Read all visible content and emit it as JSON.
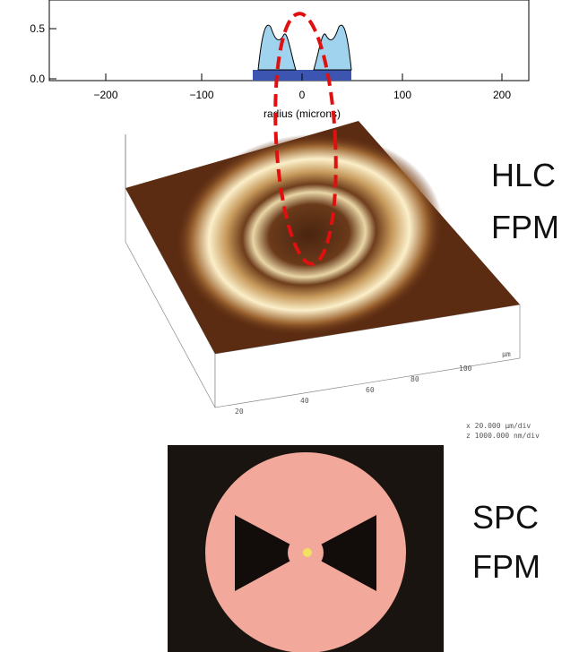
{
  "plot": {
    "xlabel": "radius (microns)",
    "xticks": [
      "−200",
      "−100",
      "0",
      "100",
      "200"
    ],
    "yticks": [
      "0.0",
      "0.5"
    ]
  },
  "afm": {
    "unit": "μm",
    "ticks": [
      "20",
      "40",
      "60",
      "80",
      "100"
    ],
    "scale": [
      "x  20.000 μm/div",
      "z  1000.000 nm/div"
    ]
  },
  "labels": {
    "hlc": [
      "HLC",
      "FPM"
    ],
    "spc": [
      "SPC",
      "FPM"
    ]
  }
}
